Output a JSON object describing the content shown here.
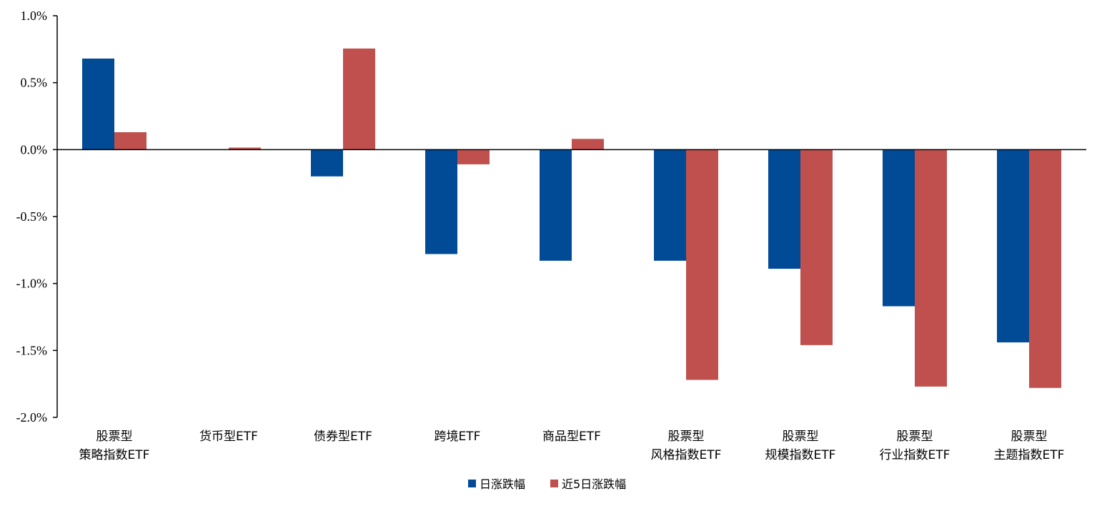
{
  "chart_data": {
    "type": "bar",
    "categories": [
      [
        "股票型",
        "策略指数ETF"
      ],
      [
        "货币型ETF"
      ],
      [
        "债券型ETF"
      ],
      [
        "跨境ETF"
      ],
      [
        "商品型ETF"
      ],
      [
        "股票型",
        "风格指数ETF"
      ],
      [
        "股票型",
        "规模指数ETF"
      ],
      [
        "股票型",
        "行业指数ETF"
      ],
      [
        "股票型",
        "主题指数ETF"
      ]
    ],
    "series": [
      {
        "name": "日涨跌幅",
        "color": "#004A96",
        "values": [
          0.68,
          0.0,
          -0.2,
          -0.78,
          -0.83,
          -0.83,
          -0.89,
          -1.17,
          -1.44
        ]
      },
      {
        "name": "近5日涨跌幅",
        "color": "#C0504D",
        "values": [
          0.13,
          0.015,
          0.755,
          -0.11,
          0.08,
          -1.72,
          -1.46,
          -1.77,
          -1.78
        ]
      }
    ],
    "ylim": [
      -2.0,
      1.0
    ],
    "yticks": [
      1.0,
      0.5,
      0.0,
      -0.5,
      -1.0,
      -1.5,
      -2.0
    ],
    "ytick_labels": [
      "1.0%",
      "0.5%",
      "0.0%",
      "-0.5%",
      "-1.0%",
      "-1.5%",
      "-2.0%"
    ],
    "grid": false,
    "legend_position": "bottom"
  }
}
